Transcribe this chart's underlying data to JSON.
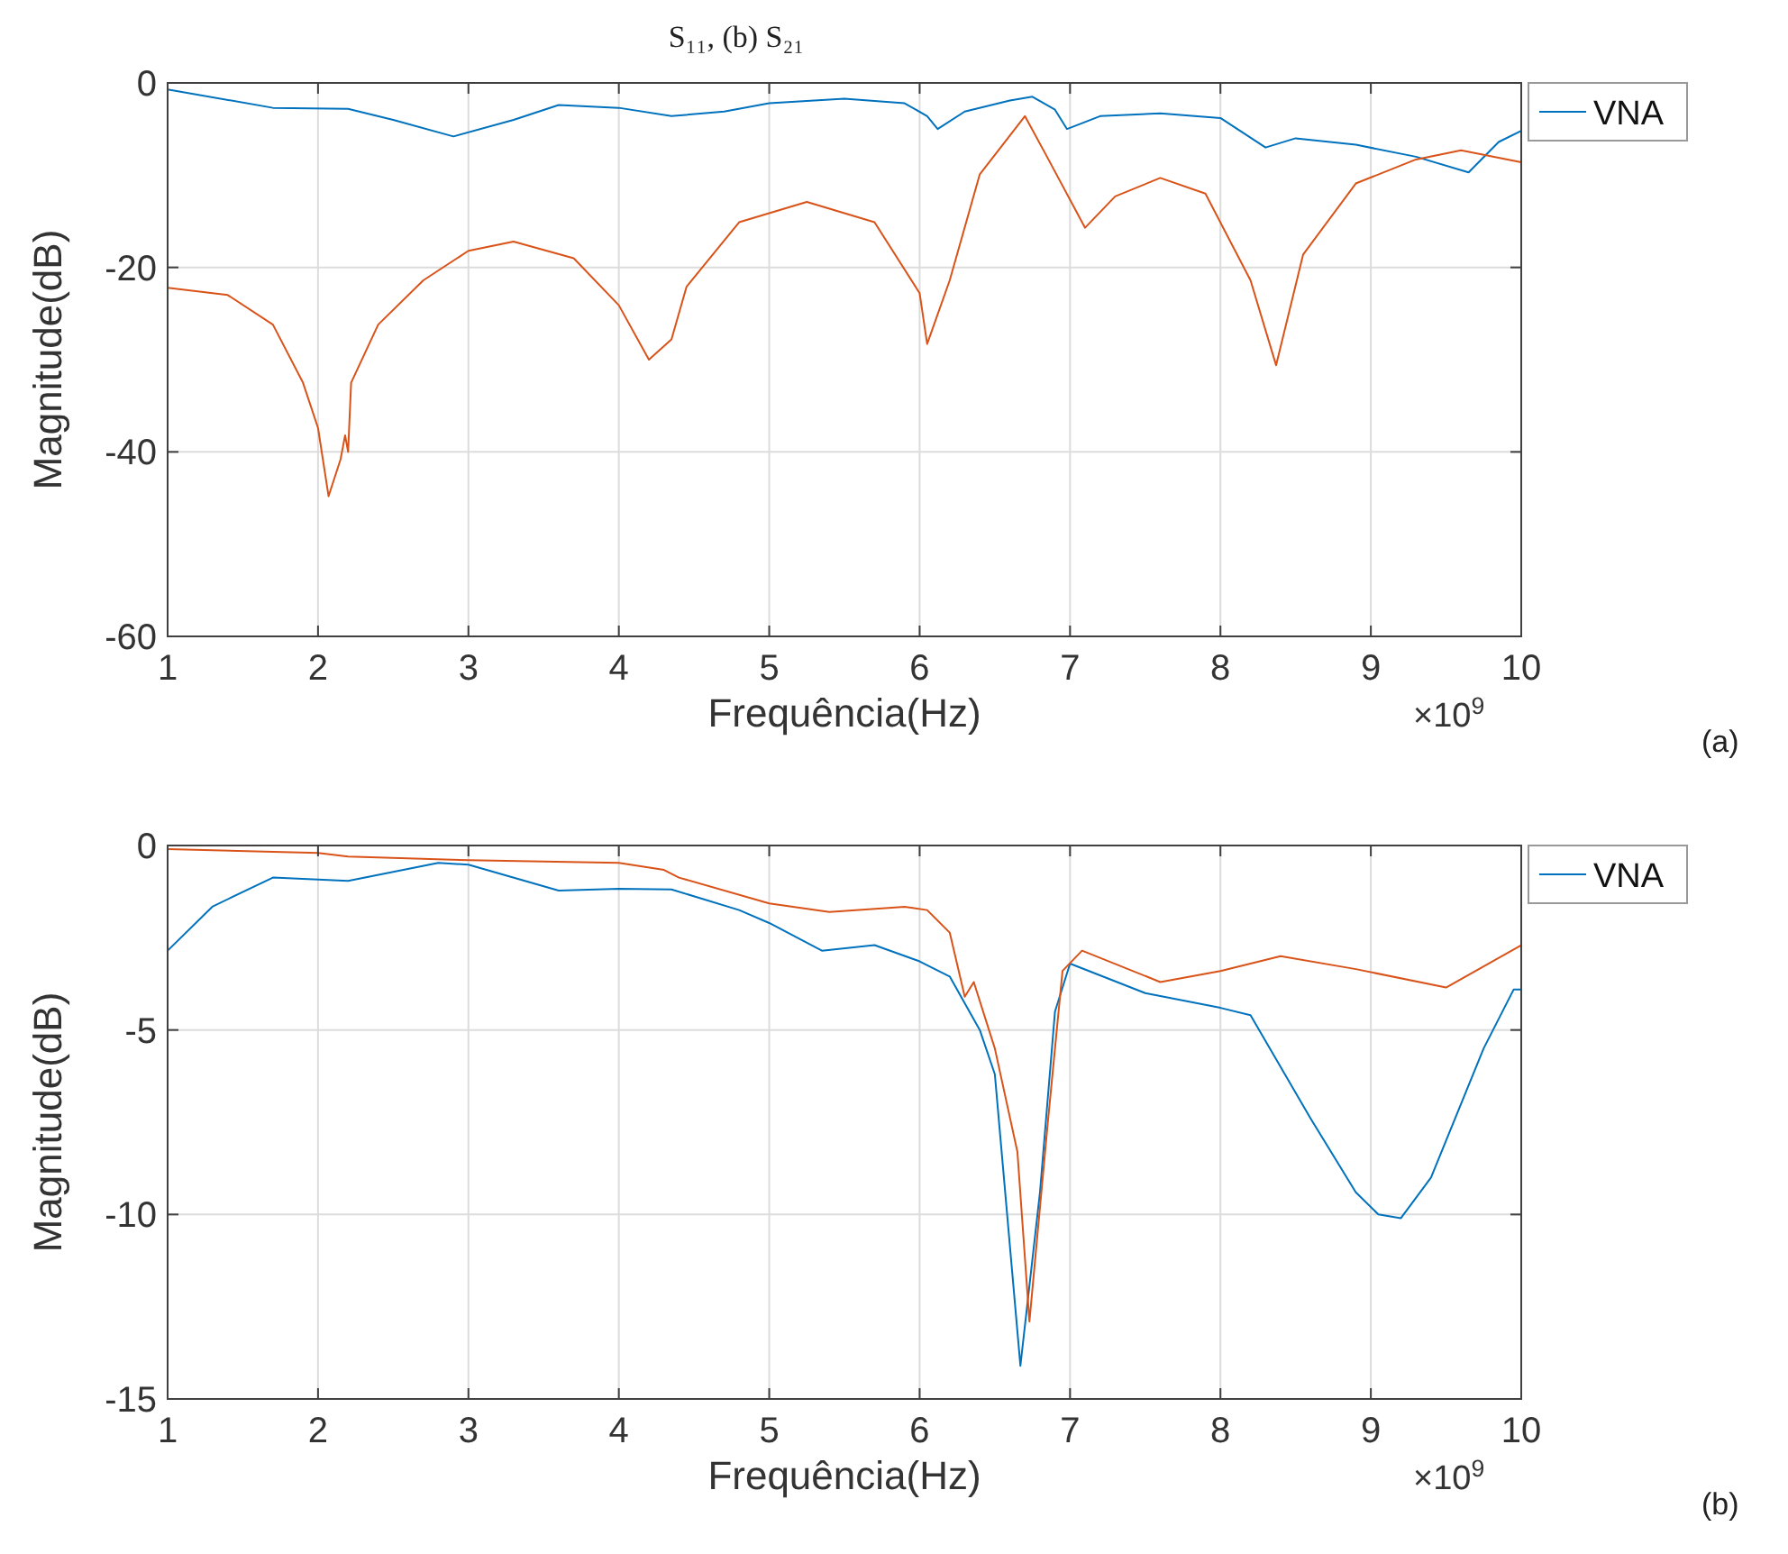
{
  "chart_data": [
    {
      "type": "line",
      "title": "S₁₁, (b) S₂₁",
      "xlabel": "Frequência(Hz)",
      "ylabel": "Magnitude(dB)",
      "annotations": [
        "×10$^{9}$",
        "(a)"
      ],
      "xlim": [
        1,
        10
      ],
      "xticks": [
        1,
        2,
        3,
        4,
        5,
        6,
        7,
        8,
        9,
        10
      ],
      "ylim": [
        -60,
        0
      ],
      "yticks": [
        -60,
        -40,
        -20,
        0
      ],
      "grid": true,
      "legend": "top right",
      "line_style": "solid",
      "series": [
        {
          "name": "VNA",
          "color": "#0072bd",
          "x": [
            1,
            1.7,
            2.2,
            2.5,
            2.9,
            3.3,
            3.6,
            4,
            4.35,
            4.7,
            5,
            5.5,
            5.9,
            6.05,
            6.12,
            6.3,
            6.6,
            6.75,
            6.9,
            6.98,
            7.2,
            7.6,
            8,
            8.3,
            8.5,
            8.9,
            9.3,
            9.65,
            9.85,
            10
          ],
          "values": [
            -0.7,
            -2.7,
            -2.8,
            -4,
            -5.8,
            -4,
            -2.4,
            -2.7,
            -3.6,
            -3.1,
            -2.2,
            -1.7,
            -2.2,
            -3.6,
            -5,
            -3.1,
            -1.9,
            -1.5,
            -2.9,
            -5,
            -3.6,
            -3.3,
            -3.8,
            -7,
            -6,
            -6.7,
            -8,
            -9.7,
            -6.4,
            -5.2
          ]
        },
        {
          "color": "#d95319",
          "x": [
            1,
            1.4,
            1.7,
            1.9,
            2,
            2.07,
            2.15,
            2.18,
            2.2,
            2.22,
            2.4,
            2.7,
            3,
            3.3,
            3.7,
            4,
            4.2,
            4.35,
            4.45,
            4.8,
            5.25,
            5.7,
            6,
            6.05,
            6.2,
            6.4,
            6.7,
            6.85,
            7.1,
            7.3,
            7.6,
            7.9,
            8.2,
            8.37,
            8.55,
            8.9,
            9.3,
            9.6,
            10
          ],
          "values": [
            -22.2,
            -23,
            -26.2,
            -32.5,
            -37.4,
            -44.8,
            -40.8,
            -38.2,
            -40,
            -32.5,
            -26.2,
            -21.4,
            -18.2,
            -17.2,
            -19,
            -24.1,
            -30,
            -27.8,
            -22.1,
            -15.1,
            -12.9,
            -15.1,
            -22.8,
            -28.3,
            -21.4,
            -9.9,
            -3.6,
            -8.1,
            -15.7,
            -12.3,
            -10.3,
            -12,
            -21.4,
            -30.6,
            -18.6,
            -10.9,
            -8.3,
            -7.3,
            -8.6
          ]
        }
      ]
    },
    {
      "type": "line",
      "xlabel": "Frequência(Hz)",
      "ylabel": "Magnitude(dB)",
      "annotations": [
        "×10$^{9}$",
        "(b)"
      ],
      "xlim": [
        1,
        10
      ],
      "xticks": [
        1,
        2,
        3,
        4,
        5,
        6,
        7,
        8,
        9,
        10
      ],
      "ylim": [
        -15,
        0
      ],
      "yticks": [
        -15,
        -10,
        -5,
        0
      ],
      "grid": true,
      "legend": "top right",
      "line_style": "solid",
      "series": [
        {
          "name": "VNA",
          "color": "#0072bd",
          "x": [
            1,
            1.3,
            1.7,
            2.2,
            2.8,
            3,
            3.6,
            4,
            4.35,
            4.8,
            5,
            5.35,
            5.7,
            6,
            6.2,
            6.4,
            6.5,
            6.67,
            6.8,
            6.9,
            7,
            7.5,
            8,
            8.2,
            8.6,
            8.9,
            9.05,
            9.2,
            9.4,
            9.75,
            9.95,
            10
          ],
          "values": [
            -2.85,
            -1.65,
            -0.87,
            -0.96,
            -0.47,
            -0.52,
            -1.22,
            -1.17,
            -1.19,
            -1.75,
            -2.1,
            -2.85,
            -2.7,
            -3.14,
            -3.55,
            -5,
            -6.2,
            -14.1,
            -9.4,
            -4.5,
            -3.2,
            -4,
            -4.4,
            -4.6,
            -7.4,
            -9.4,
            -10,
            -10.1,
            -9,
            -5.5,
            -3.9,
            -3.9
          ]
        },
        {
          "color": "#d95319",
          "x": [
            1,
            2,
            2.2,
            3,
            4,
            4.3,
            4.4,
            5,
            5.4,
            5.9,
            6.05,
            6.2,
            6.3,
            6.36,
            6.5,
            6.65,
            6.73,
            6.85,
            6.95,
            7.08,
            7.6,
            8,
            8.4,
            8.9,
            9.5,
            10
          ],
          "values": [
            -0.1,
            -0.2,
            -0.3,
            -0.4,
            -0.47,
            -0.66,
            -0.87,
            -1.57,
            -1.8,
            -1.66,
            -1.75,
            -2.36,
            -4.1,
            -3.7,
            -5.5,
            -8.3,
            -12.9,
            -7.6,
            -3.4,
            -2.85,
            -3.7,
            -3.4,
            -3,
            -3.35,
            -3.85,
            -2.7
          ]
        }
      ]
    }
  ]
}
